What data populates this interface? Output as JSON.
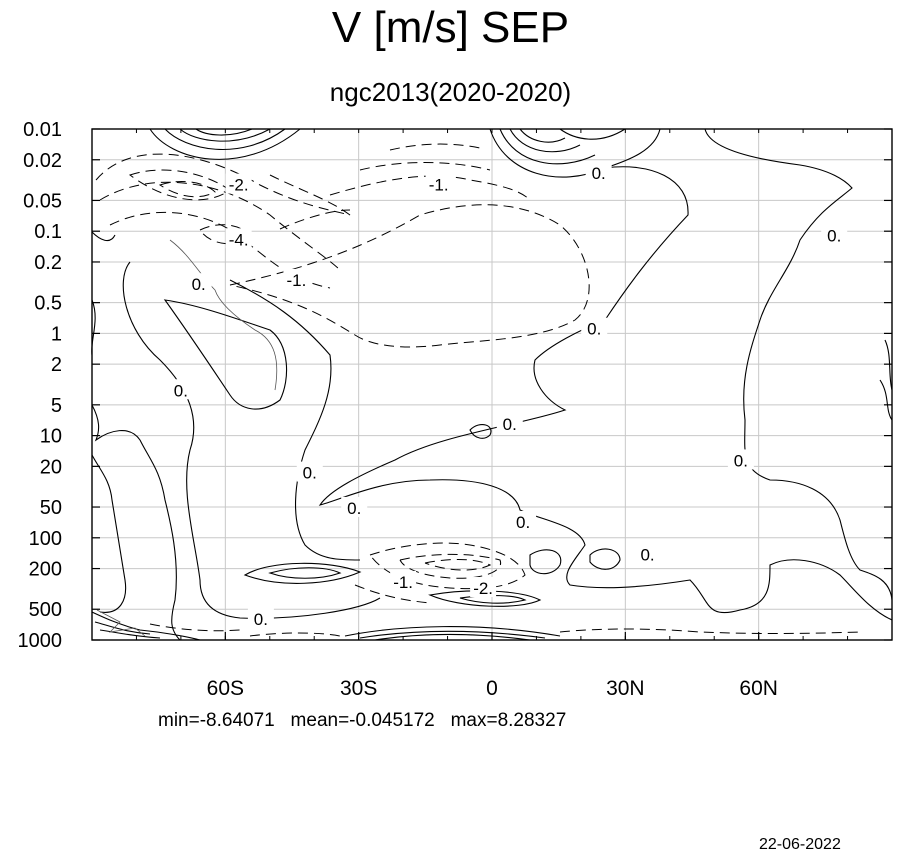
{
  "title": "V [m/s] SEP",
  "subtitle": "ngc2013(2020-2020)",
  "footer": {
    "stats": "min=-8.64071   mean=-0.045172   max=8.28327",
    "date": "22-06-2022"
  },
  "chart_data": {
    "type": "contour",
    "title": "V [m/s] SEP",
    "subtitle": "ngc2013(2020-2020)",
    "x_axis": {
      "ticks": [
        {
          "value": -60,
          "label": "60S"
        },
        {
          "value": -30,
          "label": "30S"
        },
        {
          "value": 0,
          "label": "0"
        },
        {
          "value": 30,
          "label": "30N"
        },
        {
          "value": 60,
          "label": "60N"
        }
      ],
      "range": [
        -90,
        90
      ]
    },
    "y_axis": {
      "scale": "log",
      "reversed": true,
      "ticks": [
        {
          "value": 0.01,
          "label": "0.01"
        },
        {
          "value": 0.02,
          "label": "0.02"
        },
        {
          "value": 0.05,
          "label": "0.05"
        },
        {
          "value": 0.1,
          "label": "0.1"
        },
        {
          "value": 0.2,
          "label": "0.2"
        },
        {
          "value": 0.5,
          "label": "0.5"
        },
        {
          "value": 1,
          "label": "1"
        },
        {
          "value": 2,
          "label": "2"
        },
        {
          "value": 5,
          "label": "5"
        },
        {
          "value": 10,
          "label": "10"
        },
        {
          "value": 20,
          "label": "20"
        },
        {
          "value": 50,
          "label": "50"
        },
        {
          "value": 100,
          "label": "100"
        },
        {
          "value": 200,
          "label": "200"
        },
        {
          "value": 500,
          "label": "500"
        },
        {
          "value": 1000,
          "label": "1000"
        }
      ],
      "range": [
        0.01,
        1000
      ]
    },
    "grid": true,
    "contour_labels": [
      {
        "text": "-2.",
        "x": -57,
        "p": 0.035
      },
      {
        "text": "-1.",
        "x": -12,
        "p": 0.035
      },
      {
        "text": "0.",
        "x": 24,
        "p": 0.027
      },
      {
        "text": "-4.",
        "x": -57,
        "p": 0.12
      },
      {
        "text": "0.",
        "x": 77,
        "p": 0.11
      },
      {
        "text": "0.",
        "x": -66,
        "p": 0.33
      },
      {
        "text": "-1.",
        "x": -44,
        "p": 0.3
      },
      {
        "text": "0.",
        "x": 23,
        "p": 0.9
      },
      {
        "text": "0.",
        "x": -70,
        "p": 3.6
      },
      {
        "text": "0.",
        "x": 4,
        "p": 7.7
      },
      {
        "text": "0.",
        "x": 56,
        "p": 17.5
      },
      {
        "text": "0.",
        "x": -41,
        "p": 23
      },
      {
        "text": "0.",
        "x": -31,
        "p": 51
      },
      {
        "text": "0.",
        "x": 7,
        "p": 70
      },
      {
        "text": "0.",
        "x": 35,
        "p": 145
      },
      {
        "text": "-1.",
        "x": -20,
        "p": 270
      },
      {
        "text": "-2.",
        "x": -2,
        "p": 310
      },
      {
        "text": "0.",
        "x": -52,
        "p": 620
      }
    ],
    "stats": {
      "min": -8.64071,
      "mean": -0.045172,
      "max": 8.28327
    }
  }
}
